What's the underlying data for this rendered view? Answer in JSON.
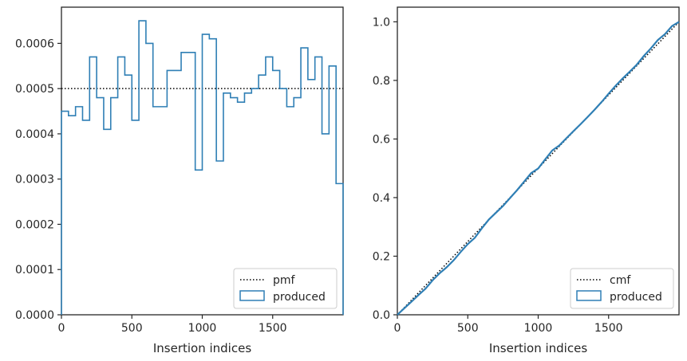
{
  "chart_data": [
    {
      "type": "line",
      "panel": "left",
      "xlabel": "Insertion indices",
      "ylabel": "",
      "xlim": [
        0,
        2000
      ],
      "ylim": [
        0,
        0.00068
      ],
      "xticks": [
        0,
        500,
        1000,
        1500
      ],
      "xtick_labels": [
        "0",
        "500",
        "1000",
        "1500"
      ],
      "yticks": [
        0,
        0.0001,
        0.0002,
        0.0003,
        0.0004,
        0.0005,
        0.0006
      ],
      "ytick_labels": [
        "0.0000",
        "0.0001",
        "0.0002",
        "0.0003",
        "0.0004",
        "0.0005",
        "0.0006"
      ],
      "grid": false,
      "legend_position": "lower-right",
      "series": [
        {
          "name": "pmf",
          "style": "dotted",
          "color": "#000000",
          "x": [
            0,
            2000
          ],
          "y": [
            0.0005,
            0.0005
          ]
        },
        {
          "name": "produced",
          "style": "step-histogram",
          "color": "#2f7fb5",
          "bin_edges": [
            0,
            50,
            100,
            150,
            200,
            250,
            300,
            350,
            400,
            450,
            500,
            550,
            600,
            650,
            700,
            750,
            800,
            850,
            900,
            950,
            1000,
            1050,
            1100,
            1150,
            1200,
            1250,
            1300,
            1350,
            1400,
            1450,
            1500,
            1550,
            1600,
            1650,
            1700,
            1750,
            1800,
            1850,
            1900,
            1950,
            2000
          ],
          "values": [
            0.00045,
            0.00044,
            0.00046,
            0.00043,
            0.00057,
            0.00048,
            0.00041,
            0.00048,
            0.00057,
            0.00053,
            0.00043,
            0.00065,
            0.0006,
            0.00046,
            0.00046,
            0.00054,
            0.00054,
            0.00058,
            0.00058,
            0.00032,
            0.00062,
            0.00061,
            0.00034,
            0.00049,
            0.00048,
            0.00047,
            0.00049,
            0.0005,
            0.00053,
            0.00057,
            0.00054,
            0.0005,
            0.00046,
            0.00048,
            0.00059,
            0.00052,
            0.00057,
            0.0004,
            0.00055,
            0.00029
          ]
        }
      ]
    },
    {
      "type": "line",
      "panel": "right",
      "xlabel": "Insertion indices",
      "ylabel": "",
      "xlim": [
        0,
        2000
      ],
      "ylim": [
        0,
        1.05
      ],
      "xticks": [
        0,
        500,
        1000,
        1500
      ],
      "xtick_labels": [
        "0",
        "500",
        "1000",
        "1500"
      ],
      "yticks": [
        0,
        0.2,
        0.4,
        0.6,
        0.8,
        1.0
      ],
      "ytick_labels": [
        "0.0",
        "0.2",
        "0.4",
        "0.6",
        "0.8",
        "1.0"
      ],
      "grid": false,
      "legend_position": "lower-right",
      "series": [
        {
          "name": "cmf",
          "style": "dotted",
          "color": "#000000",
          "x": [
            0,
            2000
          ],
          "y": [
            0,
            1.0
          ]
        },
        {
          "name": "produced",
          "style": "cumulative-step",
          "color": "#2f7fb5",
          "note_source": "cumulative of left-panel histogram"
        }
      ]
    }
  ],
  "colors": {
    "produced": "#2f7fb5",
    "reference": "#000000",
    "axes": "#262626"
  }
}
